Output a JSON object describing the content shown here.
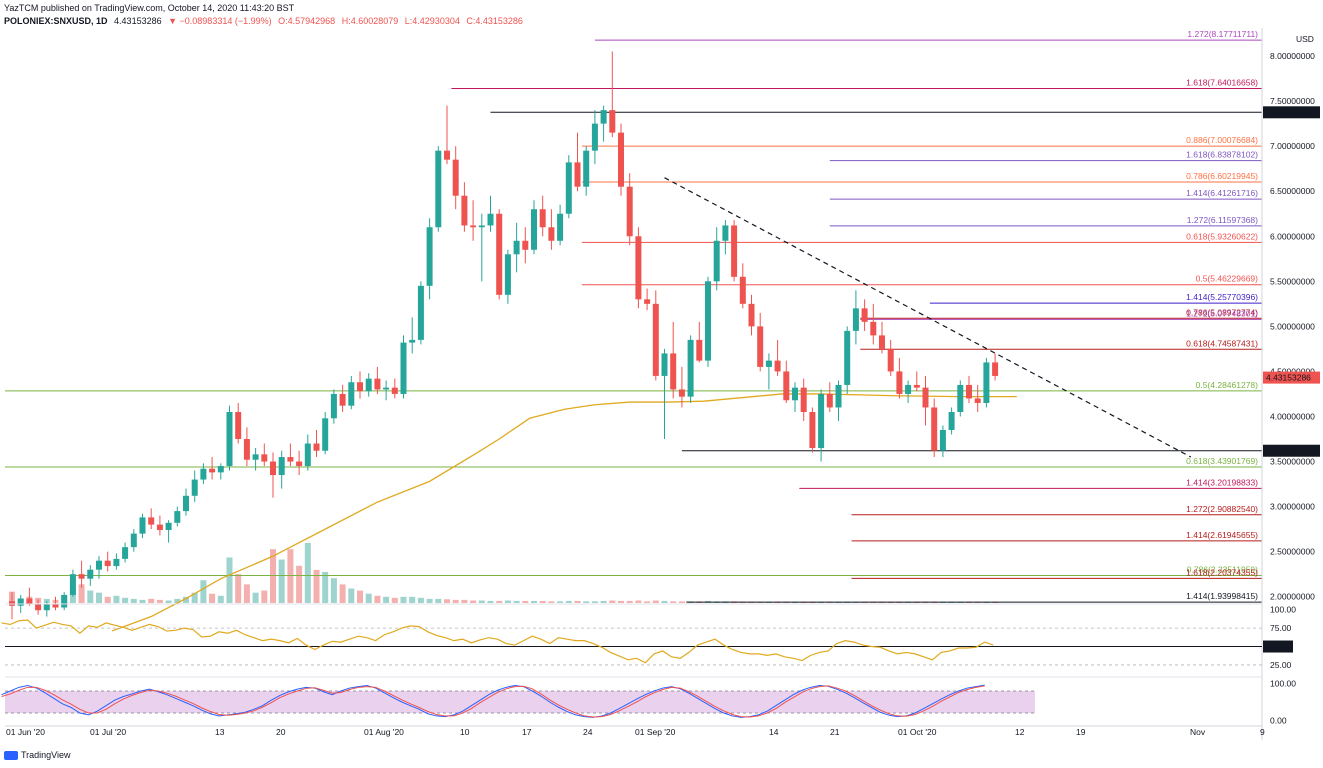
{
  "header": {
    "line1": "YazTCM published on TradingView.com, October 14, 2020 11:43:20 BST",
    "symbol": "POLONIEX:SNXUSD, 1D",
    "price": "4.43153286",
    "change": "▼ −0.08983314 (−1.99%)",
    "o": "O:4.57942968",
    "h": "H:4.60028079",
    "l": "L:4.42930304",
    "c": "C:4.43153286"
  },
  "footer": {
    "brand": "TradingView"
  },
  "colors": {
    "up": "#26a69a",
    "down": "#ef5350",
    "rsi": "#e0a91f",
    "ma": "#e0a91f",
    "stochK": "#2962ff",
    "stochD": "#ef5350",
    "stochBand": "#e1bee7"
  },
  "chart_data": {
    "type": "candlestick",
    "currency": "USD",
    "x_ticks": [
      "01 Jun '20",
      "01 Jul '20",
      "13",
      "20",
      "01 Aug '20",
      "10",
      "17",
      "24",
      "01 Sep '20",
      "14",
      "21",
      "01 Oct '20",
      "12",
      "19",
      "Nov",
      "9"
    ],
    "y_ticks": [
      "8.00000000",
      "7.50000000",
      "7.00000000",
      "6.50000000",
      "6.00000000",
      "5.50000000",
      "5.00000000",
      "4.50000000",
      "4.00000000",
      "3.50000000",
      "3.00000000",
      "2.50000000",
      "2.00000000"
    ],
    "ylim": [
      1.6,
      8.4
    ],
    "candles": [
      [
        1.95,
        2.05,
        1.75,
        1.9
      ],
      [
        1.9,
        2.02,
        1.82,
        1.98
      ],
      [
        1.98,
        2.1,
        1.9,
        1.92
      ],
      [
        1.92,
        1.97,
        1.8,
        1.85
      ],
      [
        1.85,
        1.95,
        1.78,
        1.92
      ],
      [
        1.92,
        2.0,
        1.85,
        1.88
      ],
      [
        1.88,
        2.05,
        1.85,
        2.02
      ],
      [
        2.02,
        2.3,
        2.0,
        2.25
      ],
      [
        2.25,
        2.4,
        2.1,
        2.2
      ],
      [
        2.2,
        2.35,
        2.12,
        2.3
      ],
      [
        2.3,
        2.45,
        2.2,
        2.4
      ],
      [
        2.4,
        2.5,
        2.28,
        2.34
      ],
      [
        2.34,
        2.48,
        2.3,
        2.42
      ],
      [
        2.42,
        2.6,
        2.38,
        2.55
      ],
      [
        2.55,
        2.75,
        2.5,
        2.7
      ],
      [
        2.7,
        2.92,
        2.65,
        2.88
      ],
      [
        2.88,
        2.98,
        2.75,
        2.8
      ],
      [
        2.8,
        2.9,
        2.68,
        2.74
      ],
      [
        2.74,
        2.85,
        2.6,
        2.82
      ],
      [
        2.82,
        3.0,
        2.78,
        2.95
      ],
      [
        2.95,
        3.2,
        2.9,
        3.12
      ],
      [
        3.12,
        3.4,
        3.05,
        3.3
      ],
      [
        3.3,
        3.48,
        3.25,
        3.42
      ],
      [
        3.42,
        3.55,
        3.3,
        3.38
      ],
      [
        3.38,
        3.48,
        3.3,
        3.45
      ],
      [
        3.45,
        4.12,
        3.4,
        4.05
      ],
      [
        4.05,
        4.15,
        3.7,
        3.75
      ],
      [
        3.75,
        3.88,
        3.45,
        3.52
      ],
      [
        3.52,
        3.65,
        3.4,
        3.58
      ],
      [
        3.58,
        3.7,
        3.45,
        3.5
      ],
      [
        3.5,
        3.6,
        3.1,
        3.35
      ],
      [
        3.35,
        3.62,
        3.2,
        3.55
      ],
      [
        3.55,
        3.7,
        3.45,
        3.5
      ],
      [
        3.5,
        3.62,
        3.35,
        3.45
      ],
      [
        3.45,
        3.8,
        3.4,
        3.7
      ],
      [
        3.7,
        3.85,
        3.55,
        3.62
      ],
      [
        3.62,
        4.05,
        3.58,
        3.98
      ],
      [
        3.98,
        4.3,
        3.92,
        4.25
      ],
      [
        4.25,
        4.35,
        4.05,
        4.12
      ],
      [
        4.12,
        4.45,
        4.08,
        4.38
      ],
      [
        4.38,
        4.5,
        4.2,
        4.28
      ],
      [
        4.28,
        4.48,
        4.22,
        4.42
      ],
      [
        4.42,
        4.55,
        4.25,
        4.3
      ],
      [
        4.3,
        4.4,
        4.18,
        4.32
      ],
      [
        4.32,
        4.42,
        4.2,
        4.25
      ],
      [
        4.25,
        4.9,
        4.2,
        4.82
      ],
      [
        4.82,
        5.1,
        4.7,
        4.85
      ],
      [
        4.85,
        5.5,
        4.8,
        5.45
      ],
      [
        5.45,
        6.2,
        5.3,
        6.1
      ],
      [
        6.1,
        7.0,
        6.05,
        6.95
      ],
      [
        6.95,
        7.45,
        6.8,
        6.85
      ],
      [
        6.85,
        7.0,
        6.3,
        6.45
      ],
      [
        6.45,
        6.6,
        6.05,
        6.12
      ],
      [
        6.12,
        6.4,
        5.95,
        6.1
      ],
      [
        6.1,
        6.25,
        5.5,
        6.12
      ],
      [
        6.12,
        6.45,
        6.05,
        6.25
      ],
      [
        6.25,
        6.3,
        5.3,
        5.35
      ],
      [
        5.35,
        5.85,
        5.25,
        5.8
      ],
      [
        5.8,
        6.15,
        5.6,
        5.95
      ],
      [
        5.95,
        6.1,
        5.7,
        5.85
      ],
      [
        5.85,
        6.4,
        5.8,
        6.3
      ],
      [
        6.3,
        6.45,
        6.0,
        6.1
      ],
      [
        6.1,
        6.3,
        5.85,
        5.95
      ],
      [
        5.95,
        6.35,
        5.9,
        6.25
      ],
      [
        6.25,
        6.9,
        6.2,
        6.82
      ],
      [
        6.82,
        7.15,
        6.5,
        6.55
      ],
      [
        6.55,
        7.0,
        6.45,
        6.95
      ],
      [
        6.95,
        7.4,
        6.8,
        7.25
      ],
      [
        7.25,
        7.45,
        7.05,
        7.4
      ],
      [
        7.4,
        8.05,
        7.1,
        7.15
      ],
      [
        7.15,
        7.25,
        6.45,
        6.55
      ],
      [
        6.55,
        6.7,
        5.9,
        6.0
      ],
      [
        6.0,
        6.1,
        5.2,
        5.3
      ],
      [
        5.3,
        5.42,
        5.18,
        5.25
      ],
      [
        5.25,
        5.4,
        4.4,
        4.45
      ],
      [
        4.45,
        4.75,
        3.75,
        4.7
      ],
      [
        4.7,
        5.05,
        4.2,
        4.3
      ],
      [
        4.3,
        4.55,
        4.1,
        4.22
      ],
      [
        4.22,
        4.9,
        4.15,
        4.85
      ],
      [
        4.85,
        5.05,
        4.6,
        4.62
      ],
      [
        4.62,
        5.55,
        4.55,
        5.5
      ],
      [
        5.5,
        6.1,
        5.4,
        5.95
      ],
      [
        5.95,
        6.18,
        5.8,
        6.12
      ],
      [
        6.12,
        6.18,
        5.5,
        5.55
      ],
      [
        5.55,
        5.7,
        5.2,
        5.25
      ],
      [
        5.25,
        5.35,
        4.9,
        5.0
      ],
      [
        5.0,
        5.15,
        4.5,
        4.55
      ],
      [
        4.55,
        4.7,
        4.3,
        4.62
      ],
      [
        4.62,
        4.85,
        4.45,
        4.5
      ],
      [
        4.5,
        4.62,
        4.15,
        4.18
      ],
      [
        4.18,
        4.38,
        4.05,
        4.32
      ],
      [
        4.32,
        4.42,
        3.95,
        4.05
      ],
      [
        4.05,
        4.1,
        3.6,
        3.65
      ],
      [
        3.65,
        4.3,
        3.5,
        4.25
      ],
      [
        4.25,
        4.38,
        4.05,
        4.1
      ],
      [
        4.1,
        4.4,
        3.95,
        4.35
      ],
      [
        4.35,
        5.0,
        4.25,
        4.95
      ],
      [
        4.95,
        5.4,
        4.8,
        5.2
      ],
      [
        5.2,
        5.3,
        4.95,
        5.05
      ],
      [
        5.05,
        5.25,
        4.8,
        4.9
      ],
      [
        4.9,
        5.05,
        4.7,
        4.75
      ],
      [
        4.75,
        4.85,
        4.45,
        4.5
      ],
      [
        4.5,
        4.65,
        4.2,
        4.25
      ],
      [
        4.25,
        4.4,
        4.15,
        4.35
      ],
      [
        4.35,
        4.5,
        4.28,
        4.32
      ],
      [
        4.32,
        4.45,
        3.9,
        4.1
      ],
      [
        4.1,
        4.2,
        3.55,
        3.62
      ],
      [
        3.62,
        3.9,
        3.55,
        3.85
      ],
      [
        3.85,
        4.1,
        3.8,
        4.05
      ],
      [
        4.05,
        4.4,
        4.0,
        4.35
      ],
      [
        4.35,
        4.45,
        4.15,
        4.2
      ],
      [
        4.2,
        4.35,
        4.05,
        4.15
      ],
      [
        4.15,
        4.65,
        4.1,
        4.6
      ],
      [
        4.6,
        4.7,
        4.4,
        4.45
      ]
    ],
    "volumes": [
      0.55,
      0.2,
      0.3,
      0.25,
      0.2,
      0.15,
      0.3,
      0.7,
      0.9,
      0.6,
      0.5,
      0.3,
      0.35,
      0.25,
      0.2,
      0.15,
      0.2,
      0.15,
      0.12,
      0.2,
      0.3,
      0.5,
      1.1,
      0.45,
      0.35,
      2.2,
      1.4,
      0.9,
      0.5,
      0.6,
      2.6,
      2.1,
      2.6,
      1.8,
      2.9,
      1.6,
      1.5,
      1.2,
      0.9,
      0.7,
      0.6,
      0.45,
      0.35,
      0.3,
      0.25,
      0.3,
      0.3,
      0.25,
      0.2,
      0.2,
      0.18,
      0.15,
      0.15,
      0.12,
      0.12,
      0.1,
      0.1,
      0.12,
      0.1,
      0.1,
      0.1,
      0.1,
      0.08,
      0.08,
      0.1,
      0.1,
      0.08,
      0.08,
      0.1,
      0.12,
      0.1,
      0.1,
      0.12,
      0.08,
      0.12,
      0.1,
      0.08,
      0.08,
      0.08,
      0.08,
      0.1,
      0.08,
      0.08,
      0.08,
      0.06,
      0.06,
      0.06,
      0.06,
      0.06,
      0.06,
      0.06,
      0.06,
      0.06,
      0.06,
      0.06,
      0.06,
      0.06,
      0.06,
      0.06,
      0.06,
      0.06,
      0.06,
      0.06,
      0.06,
      0.06,
      0.06,
      0.06,
      0.06,
      0.06,
      0.06,
      0.06,
      0.06,
      0.06,
      0.06
    ],
    "moving_average": [
      [
        11.5,
        1.62
      ],
      [
        16.0,
        1.78
      ],
      [
        20.0,
        1.98
      ],
      [
        24.0,
        2.2
      ],
      [
        30.0,
        2.45
      ],
      [
        36.0,
        2.75
      ],
      [
        42.0,
        3.05
      ],
      [
        48.0,
        3.28
      ],
      [
        53.5,
        3.6
      ],
      [
        56.0,
        3.75
      ],
      [
        59.5,
        3.98
      ],
      [
        63.5,
        4.08
      ],
      [
        67.0,
        4.13
      ],
      [
        71.0,
        4.16
      ],
      [
        75.5,
        4.16
      ],
      [
        79.5,
        4.17
      ],
      [
        84.0,
        4.21
      ],
      [
        88.5,
        4.25
      ],
      [
        93.0,
        4.25
      ],
      [
        97.5,
        4.24
      ],
      [
        101.5,
        4.23
      ],
      [
        109.0,
        4.22
      ],
      [
        115.5,
        4.22
      ]
    ],
    "fib_levels": [
      {
        "label": "1.272(8.17711711)",
        "value": 8.17711711,
        "color": "#ab47bc",
        "x_from": 67.0
      },
      {
        "label": "1.618(7.64016658)",
        "value": 7.64016658,
        "color": "#c2185b",
        "x_from": 50.5
      },
      {
        "label": "0.886(7.00076684)",
        "value": 7.00076684,
        "color": "#ff7043",
        "x_from": 65.5
      },
      {
        "label": "1.618(6.83878102)",
        "value": 6.83878102,
        "color": "#7e57c2",
        "x_from": 94.0
      },
      {
        "label": "0.786(6.60219945)",
        "value": 6.60219945,
        "color": "#ff7043",
        "x_from": 65.5
      },
      {
        "label": "1.414(6.41261716)",
        "value": 6.41261716,
        "color": "#7e57c2",
        "x_from": 94.0
      },
      {
        "label": "1.272(6.11597368)",
        "value": 6.11597368,
        "color": "#7e57c2",
        "x_from": 94.0
      },
      {
        "label": "0.618(5.93260622)",
        "value": 5.93260622,
        "color": "#ef5350",
        "x_from": 65.5
      },
      {
        "label": "0.5(5.46229669)",
        "value": 5.46229669,
        "color": "#ef5350",
        "x_from": 65.5
      },
      {
        "label": "1.414(5.25770396)",
        "value": 5.25770396,
        "color": "#3f1dcb",
        "x_from": 105.5
      },
      {
        "label": "0.786(5.08972774)",
        "value": 5.08972774,
        "color": "#b71c1c",
        "x_from": 97.5
      },
      {
        "label": "1.272(5.07748301)",
        "value": 5.07748301,
        "color": "#ab47bc",
        "x_from": 97.5
      },
      {
        "label": "0.618(4.74587431)",
        "value": 4.74587431,
        "color": "#b71c1c",
        "x_from": 97.5
      },
      {
        "label": "0.5(4.28461278)",
        "value": 4.28461278,
        "color": "#7cb342",
        "x_from": 0.0
      },
      {
        "label": "0.618(3.43901769)",
        "value": 3.43901769,
        "color": "#7cb342",
        "x_from": 0.0
      },
      {
        "label": "1.414(3.20198833)",
        "value": 3.20198833,
        "color": "#c2185b",
        "x_from": 90.5
      },
      {
        "label": "1.272(2.90882540)",
        "value": 2.9088254,
        "color": "#b71c1c",
        "x_from": 96.5
      },
      {
        "label": "1.414(2.61945655)",
        "value": 2.61945655,
        "color": "#b71c1c",
        "x_from": 96.5
      },
      {
        "label": "0.786(2.23511959)",
        "value": 2.23511959,
        "color": "#7cb342",
        "x_from": 0.0
      },
      {
        "label": "1.618(2.20374355)",
        "value": 2.20374355,
        "color": "#b71c1c",
        "x_from": 96.5
      },
      {
        "label": "1.414(1.93998415)",
        "value": 1.93998415,
        "color": "#131722",
        "x_from": 77.5
      }
    ],
    "horizontal_lines": [
      {
        "label": "7.37565766",
        "value": 7.37565766,
        "x_from": 55.0
      },
      {
        "label": "3.61986250",
        "value": 3.6198625,
        "x_from": 77.0
      }
    ],
    "last_price": {
      "label": "4.43153286",
      "value": 4.43153286
    },
    "trendline": [
      [
        75.0,
        6.65
      ],
      [
        135.5,
        3.55
      ]
    ],
    "rsi": {
      "ticks": [
        "100.00",
        "75.00",
        "50.00",
        "25.00"
      ],
      "level_label": "50.00",
      "ylim": [
        10,
        105
      ],
      "values": [
        82,
        80,
        85,
        86,
        75,
        79,
        83,
        80,
        78,
        68,
        78,
        76,
        82,
        79,
        76,
        72,
        76,
        80,
        77,
        71,
        72,
        75,
        73,
        63,
        64,
        70,
        68,
        72,
        66,
        62,
        58,
        60,
        58,
        55,
        61,
        52,
        46,
        52,
        57,
        56,
        60,
        64,
        62,
        58,
        66,
        70,
        75,
        78,
        77,
        70,
        65,
        62,
        58,
        60,
        55,
        59,
        62,
        60,
        54,
        52,
        58,
        64,
        60,
        54,
        62,
        60,
        58,
        58,
        54,
        49,
        42,
        37,
        32,
        34,
        28,
        40,
        44,
        36,
        34,
        42,
        52,
        56,
        60,
        52,
        46,
        42,
        40,
        40,
        38,
        40,
        36,
        34,
        31,
        38,
        42,
        44,
        54,
        58,
        56,
        52,
        50,
        49,
        44,
        40,
        42,
        40,
        36,
        32,
        42,
        44,
        48,
        48,
        49,
        56,
        52
      ]
    },
    "stoch": {
      "ticks": [
        "100.00",
        "0.00"
      ],
      "ylim": [
        -10,
        110
      ],
      "k": [
        70,
        80,
        90,
        95,
        88,
        75,
        60,
        45,
        35,
        20,
        15,
        25,
        40,
        55,
        65,
        72,
        80,
        85,
        78,
        70,
        60,
        50,
        40,
        28,
        18,
        12,
        15,
        18,
        22,
        30,
        40,
        55,
        68,
        78,
        85,
        90,
        88,
        78,
        70,
        80,
        88,
        92,
        95,
        88,
        75,
        62,
        50,
        40,
        30,
        18,
        12,
        10,
        15,
        25,
        40,
        55,
        70,
        82,
        90,
        95,
        92,
        80,
        66,
        50,
        36,
        24,
        15,
        10,
        8,
        12,
        20,
        32,
        45,
        58,
        70,
        80,
        88,
        92,
        86,
        74,
        60,
        46,
        32,
        20,
        12,
        8,
        10,
        15,
        25,
        40,
        55,
        70,
        82,
        90,
        95,
        93,
        85,
        75,
        62,
        48,
        35,
        22,
        14,
        10,
        12,
        20,
        32,
        45,
        58,
        70,
        80,
        88,
        92,
        96
      ],
      "d": [
        65,
        72,
        82,
        90,
        90,
        82,
        70,
        56,
        44,
        30,
        20,
        20,
        30,
        45,
        58,
        68,
        76,
        82,
        80,
        74,
        66,
        56,
        46,
        34,
        24,
        16,
        14,
        16,
        20,
        26,
        36,
        48,
        62,
        72,
        80,
        87,
        89,
        82,
        74,
        76,
        84,
        90,
        92,
        90,
        80,
        68,
        56,
        45,
        35,
        24,
        16,
        12,
        12,
        20,
        32,
        48,
        62,
        76,
        86,
        92,
        93,
        86,
        72,
        56,
        42,
        30,
        20,
        12,
        9,
        10,
        16,
        26,
        38,
        50,
        64,
        75,
        84,
        90,
        88,
        78,
        66,
        52,
        38,
        26,
        16,
        10,
        9,
        12,
        20,
        32,
        48,
        62,
        76,
        86,
        92,
        94,
        88,
        80,
        68,
        54,
        40,
        28,
        18,
        12,
        11,
        16,
        26,
        38,
        52,
        64,
        76,
        84,
        90,
        94
      ]
    }
  }
}
